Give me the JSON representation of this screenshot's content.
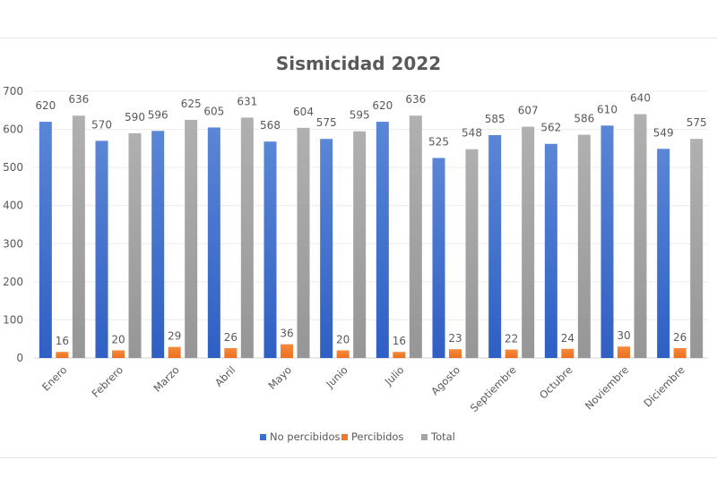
{
  "chart_data": {
    "type": "bar",
    "title": "Sismicidad 2022",
    "categories": [
      "Enero",
      "Febrero",
      "Marzo",
      "Abril",
      "Mayo",
      "Junio",
      "Julio",
      "Agosto",
      "Septiembre",
      "Octubre",
      "Noviembre",
      "Diciembre"
    ],
    "series": [
      {
        "name": "No percibidos",
        "color": "#3a6fd1",
        "values": [
          620,
          570,
          596,
          605,
          568,
          575,
          620,
          525,
          585,
          562,
          610,
          549
        ]
      },
      {
        "name": "Percibidos",
        "color": "#f07a2a",
        "values": [
          16,
          20,
          29,
          26,
          36,
          20,
          16,
          23,
          22,
          24,
          30,
          26
        ]
      },
      {
        "name": "Total",
        "color": "#a5a5a5",
        "values": [
          636,
          590,
          625,
          631,
          604,
          595,
          636,
          548,
          607,
          586,
          640,
          575
        ]
      }
    ],
    "ylim": [
      0,
      700
    ],
    "yticks": [
      0,
      100,
      200,
      300,
      400,
      500,
      600,
      700
    ],
    "grid": true,
    "legend": "bottom",
    "data_labels": true
  }
}
